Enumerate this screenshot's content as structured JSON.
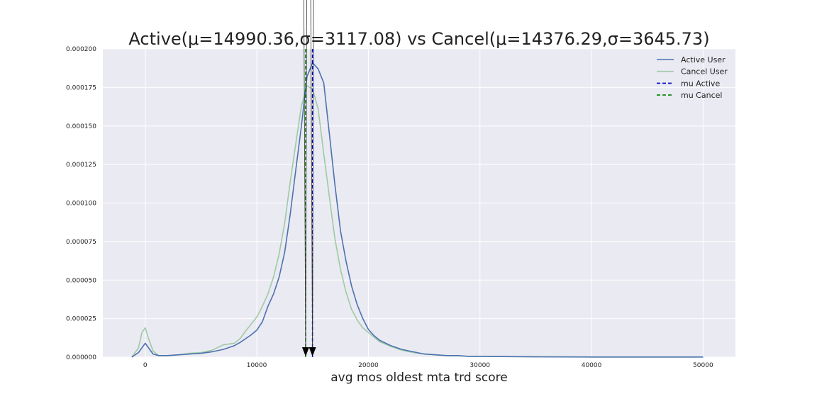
{
  "chart_data": {
    "type": "line",
    "title": "Active(μ=14990.36,σ=3117.08) vs Cancel(μ=14376.29,σ=3645.73)",
    "xlabel": "avg mos oldest mta trd score",
    "ylabel": "",
    "xlim": [
      -3800,
      52900
    ],
    "ylim": [
      0,
      0.0002
    ],
    "x_ticks": [
      0,
      10000,
      20000,
      30000,
      40000,
      50000
    ],
    "y_ticks": [
      0,
      2.5e-05,
      5e-05,
      7.5e-05,
      0.0001,
      0.000125,
      0.00015,
      0.000175,
      0.0002
    ],
    "x_tick_labels": [
      "0",
      "10000",
      "20000",
      "30000",
      "40000",
      "50000"
    ],
    "y_tick_labels": [
      "0.000000",
      "0.000025",
      "0.000050",
      "0.000075",
      "0.000100",
      "0.000125",
      "0.000150",
      "0.000175",
      "0.000200"
    ],
    "grid": true,
    "legend_position": "top-right",
    "background_color": "#EAEAF2",
    "series": [
      {
        "name": "Active User",
        "color": "#4C72B0",
        "style": "solid",
        "x": [
          -1200,
          -600,
          0,
          300,
          700,
          1200,
          2000,
          3000,
          4000,
          5000,
          6000,
          7000,
          8000,
          8500,
          9000,
          9500,
          10000,
          10500,
          11000,
          11500,
          12000,
          12500,
          13000,
          13500,
          14000,
          14500,
          15000,
          15500,
          16000,
          16500,
          17000,
          17500,
          18000,
          18500,
          19000,
          19500,
          20000,
          20500,
          21000,
          22000,
          23000,
          24000,
          25000,
          26000,
          27000,
          28000,
          29000,
          30000,
          35000,
          40000,
          45000,
          50000
        ],
        "y": [
          0,
          3e-06,
          9e-06,
          6e-06,
          2e-06,
          1e-06,
          1e-06,
          1.5e-06,
          2e-06,
          2.5e-06,
          3.5e-06,
          5e-06,
          7.5e-06,
          9.5e-06,
          1.2e-05,
          1.45e-05,
          1.75e-05,
          2.3e-05,
          3.3e-05,
          4.1e-05,
          5.2e-05,
          6.8e-05,
          9.3e-05,
          0.000122,
          0.00015,
          0.000182,
          0.000191,
          0.000187,
          0.000178,
          0.000145,
          0.000112,
          8.2e-05,
          6.2e-05,
          4.6e-05,
          3.4e-05,
          2.5e-05,
          1.8e-05,
          1.4e-05,
          1.1e-05,
          7.5e-06,
          5e-06,
          3.5e-06,
          2e-06,
          1.5e-06,
          1e-06,
          1e-06,
          5e-07,
          5e-07,
          2e-07,
          1e-07,
          1e-07,
          1e-07
        ]
      },
      {
        "name": "Cancel User",
        "color": "#9ECAA5",
        "style": "solid",
        "x": [
          -1200,
          -600,
          -300,
          0,
          300,
          700,
          1200,
          2000,
          3000,
          4000,
          5000,
          6000,
          7000,
          8000,
          8500,
          9000,
          9500,
          10000,
          10500,
          11000,
          11500,
          12000,
          12500,
          13000,
          13500,
          14000,
          14500,
          15000,
          15500,
          16000,
          16500,
          17000,
          17500,
          18000,
          18500,
          19000,
          19500,
          20000,
          20500,
          21000,
          22000,
          23000,
          24000,
          25000,
          26000,
          27000,
          28000,
          29000,
          30000,
          35000,
          40000,
          45000,
          50000
        ],
        "y": [
          0,
          6e-06,
          1.6e-05,
          1.9e-05,
          1.2e-05,
          4e-06,
          1e-06,
          1e-06,
          1.5e-06,
          2.5e-06,
          3e-06,
          4.5e-06,
          8e-06,
          9e-06,
          1.2e-05,
          1.7e-05,
          2.15e-05,
          2.6e-05,
          3.3e-05,
          4.1e-05,
          5.2e-05,
          6.7e-05,
          8.7e-05,
          0.000114,
          0.000139,
          0.000163,
          0.000176,
          0.000174,
          0.000161,
          0.000132,
          0.000104,
          7.7e-05,
          5.7e-05,
          4.2e-05,
          3.1e-05,
          2.4e-05,
          1.9e-05,
          1.6e-05,
          1.3e-05,
          1e-05,
          7e-06,
          4.5e-06,
          3e-06,
          2e-06,
          1.5e-06,
          1e-06,
          1e-06,
          5e-07,
          5e-07,
          3e-07,
          1e-07,
          1e-07,
          1e-07
        ]
      }
    ],
    "vlines": [
      {
        "name": "mu Active",
        "x": 14990.36,
        "color": "#0000CC",
        "style": "dashed"
      },
      {
        "name": "mu Cancel",
        "x": 14376.29,
        "color": "#008000",
        "style": "dashed"
      }
    ]
  }
}
